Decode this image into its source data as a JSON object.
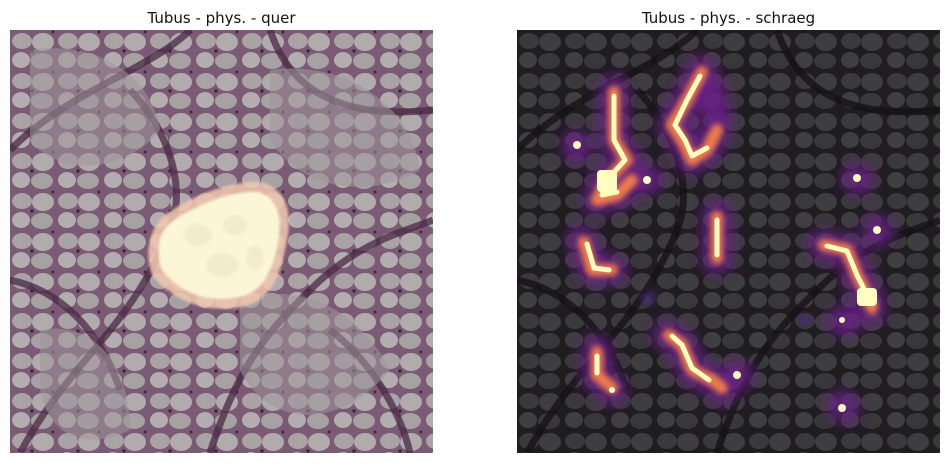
{
  "panels": [
    {
      "title": "Tubus - phys. - quer",
      "overlay": "segmentation-mask",
      "tissue_tint": "#8a6f86",
      "mask_color": "#fbf6d6"
    },
    {
      "title": "Tubus - phys. - schraeg",
      "overlay": "attention-heatmap",
      "tissue_tint": "#2c2a2d",
      "heat_colors": [
        "#fcfdbf",
        "#fd9f6c",
        "#de4968",
        "#8c2981",
        "#3b0f70"
      ]
    }
  ]
}
